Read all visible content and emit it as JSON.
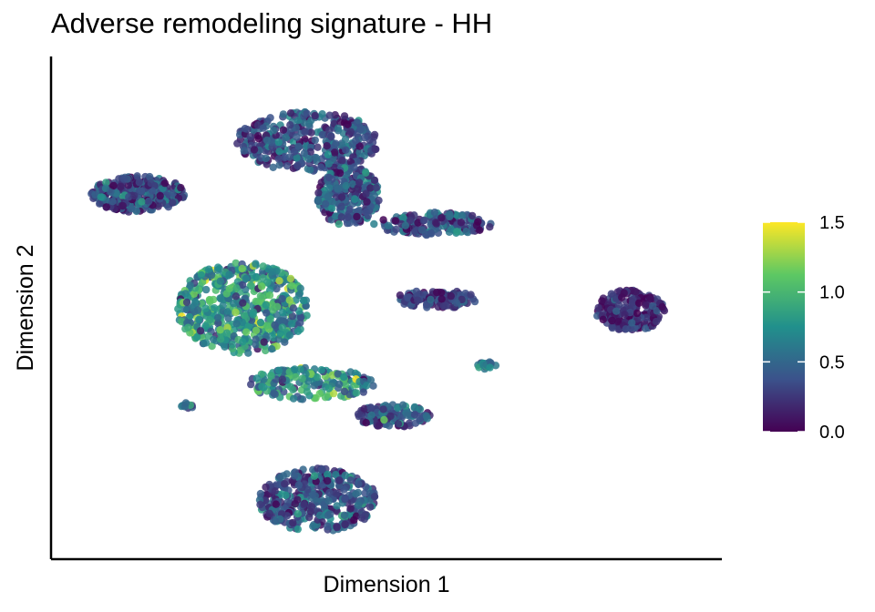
{
  "chart_data": {
    "type": "scatter",
    "title": "Adverse remodeling signature - HH",
    "xlabel": "Dimension 1",
    "ylabel": "Dimension 2",
    "axis_ticks_shown": false,
    "grid": false,
    "colorbar": {
      "title": "",
      "min": 0.0,
      "max": 1.5,
      "ticks": [
        0.0,
        0.5,
        1.0,
        1.5
      ],
      "tick_labels": [
        "0.0",
        "0.5",
        "1.0",
        "1.5"
      ],
      "colormap": "viridis",
      "colors": [
        "#440154",
        "#3b528b",
        "#21908c",
        "#5dc863",
        "#fde725"
      ],
      "placement": "right"
    },
    "xlim": [
      0,
      100
    ],
    "ylim": [
      0,
      100
    ],
    "clusters": [
      {
        "cx": 11.3,
        "cy": 75.5,
        "rx": 7.5,
        "ry": 4.0,
        "n": 320,
        "mean": 0.35,
        "spread": 0.35
      },
      {
        "cx": 38.5,
        "cy": 87.0,
        "rx": 11.5,
        "ry": 6.5,
        "n": 380,
        "mean": 0.35,
        "spread": 0.35
      },
      {
        "cx": 45.0,
        "cy": 75.0,
        "rx": 5.0,
        "ry": 6.5,
        "n": 250,
        "mean": 0.4,
        "spread": 0.35
      },
      {
        "cx": 58.5,
        "cy": 69.0,
        "rx": 9.5,
        "ry": 2.5,
        "n": 160,
        "mean": 0.35,
        "spread": 0.35
      },
      {
        "cx": 28.0,
        "cy": 50.5,
        "rx": 10.5,
        "ry": 10.0,
        "n": 560,
        "mean": 0.75,
        "spread": 0.45
      },
      {
        "cx": 59.0,
        "cy": 52.5,
        "rx": 6.5,
        "ry": 2.0,
        "n": 120,
        "mean": 0.3,
        "spread": 0.3
      },
      {
        "cx": 90.0,
        "cy": 50.0,
        "rx": 5.5,
        "ry": 4.5,
        "n": 200,
        "mean": 0.2,
        "spread": 0.25
      },
      {
        "cx": 39.0,
        "cy": 34.0,
        "rx": 10.0,
        "ry": 3.5,
        "n": 180,
        "mean": 0.7,
        "spread": 0.45
      },
      {
        "cx": 52.0,
        "cy": 27.0,
        "rx": 6.0,
        "ry": 2.5,
        "n": 120,
        "mean": 0.4,
        "spread": 0.35
      },
      {
        "cx": 40.0,
        "cy": 8.5,
        "rx": 9.5,
        "ry": 7.0,
        "n": 400,
        "mean": 0.4,
        "spread": 0.35
      },
      {
        "cx": 67.0,
        "cy": 38.0,
        "rx": 1.5,
        "ry": 0.8,
        "n": 20,
        "mean": 0.5,
        "spread": 0.3
      },
      {
        "cx": 19.0,
        "cy": 29.0,
        "rx": 1.0,
        "ry": 0.8,
        "n": 10,
        "mean": 0.5,
        "spread": 0.3
      }
    ]
  }
}
